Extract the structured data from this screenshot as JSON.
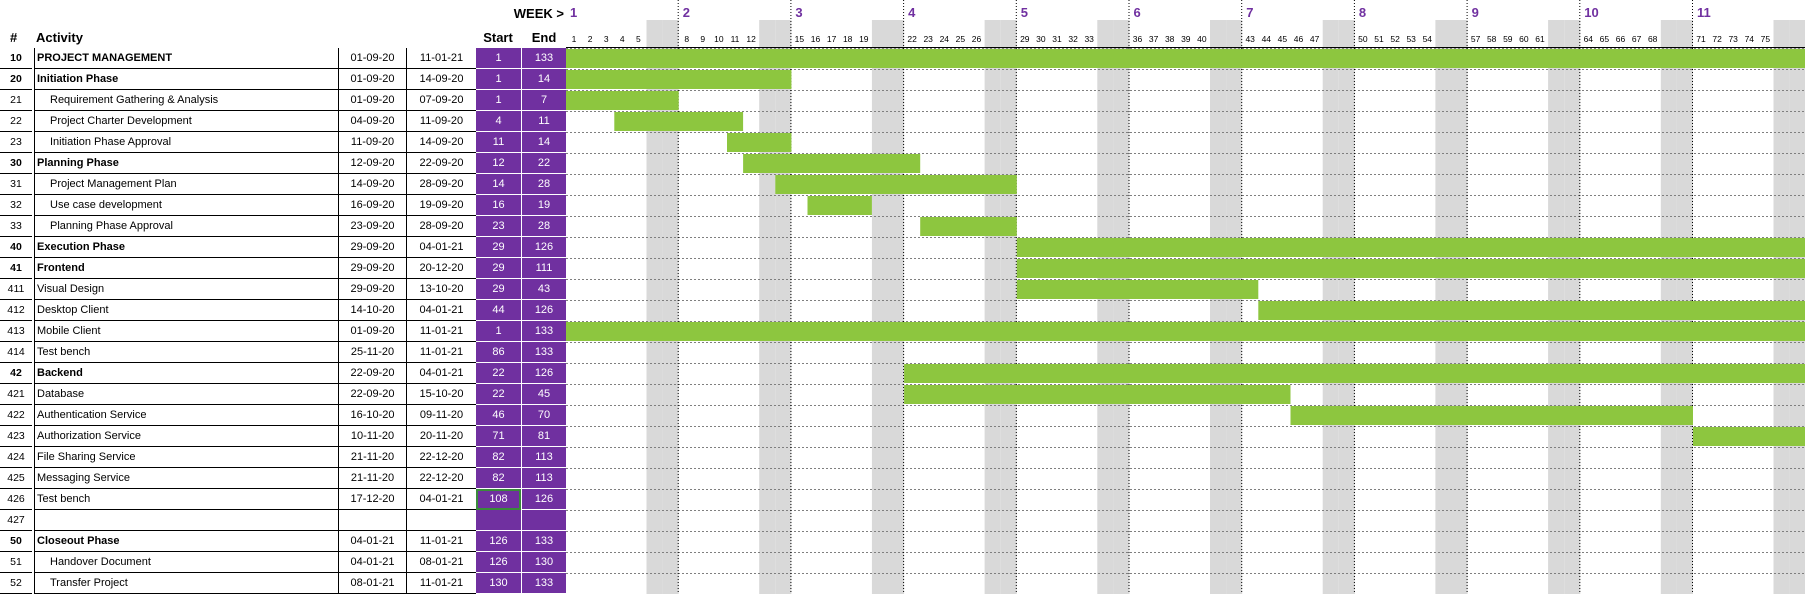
{
  "header": {
    "hash": "#",
    "activity": "Activity",
    "start": "Start",
    "end": "End",
    "week_label": "WEEK >"
  },
  "weeks": [
    "1",
    "2",
    "3",
    "4",
    "5",
    "6",
    "7",
    "8",
    "9",
    "10",
    "11"
  ],
  "visible_days": 77,
  "colors": {
    "bar": "#8dc63f",
    "accent": "#7030a0",
    "weekend": "#d9d9d9"
  },
  "rows": [
    {
      "id": "10",
      "activity": "PROJECT MANAGEMENT",
      "start_date": "01-09-20",
      "end_date": "11-01-21",
      "start": "1",
      "end": "133",
      "bold": true,
      "indent": false
    },
    {
      "id": "20",
      "activity": "Initiation Phase",
      "start_date": "01-09-20",
      "end_date": "14-09-20",
      "start": "1",
      "end": "14",
      "bold": true,
      "indent": false
    },
    {
      "id": "21",
      "activity": "Requirement Gathering & Analysis",
      "start_date": "01-09-20",
      "end_date": "07-09-20",
      "start": "1",
      "end": "7",
      "bold": false,
      "indent": true
    },
    {
      "id": "22",
      "activity": "Project Charter Development",
      "start_date": "04-09-20",
      "end_date": "11-09-20",
      "start": "4",
      "end": "11",
      "bold": false,
      "indent": true
    },
    {
      "id": "23",
      "activity": "Initiation Phase Approval",
      "start_date": "11-09-20",
      "end_date": "14-09-20",
      "start": "11",
      "end": "14",
      "bold": false,
      "indent": true
    },
    {
      "id": "30",
      "activity": "Planning Phase",
      "start_date": "12-09-20",
      "end_date": "22-09-20",
      "start": "12",
      "end": "22",
      "bold": true,
      "indent": false
    },
    {
      "id": "31",
      "activity": "Project Management Plan",
      "start_date": "14-09-20",
      "end_date": "28-09-20",
      "start": "14",
      "end": "28",
      "bold": false,
      "indent": true
    },
    {
      "id": "32",
      "activity": "Use case development",
      "start_date": "16-09-20",
      "end_date": "19-09-20",
      "start": "16",
      "end": "19",
      "bold": false,
      "indent": true
    },
    {
      "id": "33",
      "activity": "Planning Phase Approval",
      "start_date": "23-09-20",
      "end_date": "28-09-20",
      "start": "23",
      "end": "28",
      "bold": false,
      "indent": true
    },
    {
      "id": "40",
      "activity": "Execution Phase",
      "start_date": "29-09-20",
      "end_date": "04-01-21",
      "start": "29",
      "end": "126",
      "bold": true,
      "indent": false
    },
    {
      "id": "41",
      "activity": "Frontend",
      "start_date": "29-09-20",
      "end_date": "20-12-20",
      "start": "29",
      "end": "111",
      "bold": true,
      "indent": false
    },
    {
      "id": "411",
      "activity": "Visual Design",
      "start_date": "29-09-20",
      "end_date": "13-10-20",
      "start": "29",
      "end": "43",
      "bold": false,
      "indent": false
    },
    {
      "id": "412",
      "activity": "Desktop Client",
      "start_date": "14-10-20",
      "end_date": "04-01-21",
      "start": "44",
      "end": "126",
      "bold": false,
      "indent": false
    },
    {
      "id": "413",
      "activity": "Mobile Client",
      "start_date": "01-09-20",
      "end_date": "11-01-21",
      "start": "1",
      "end": "133",
      "bold": false,
      "indent": false
    },
    {
      "id": "414",
      "activity": "Test bench",
      "start_date": "25-11-20",
      "end_date": "11-01-21",
      "start": "86",
      "end": "133",
      "bold": false,
      "indent": false
    },
    {
      "id": "42",
      "activity": "Backend",
      "start_date": "22-09-20",
      "end_date": "04-01-21",
      "start": "22",
      "end": "126",
      "bold": true,
      "indent": false
    },
    {
      "id": "421",
      "activity": "Database",
      "start_date": "22-09-20",
      "end_date": "15-10-20",
      "start": "22",
      "end": "45",
      "bold": false,
      "indent": false
    },
    {
      "id": "422",
      "activity": "Authentication Service",
      "start_date": "16-10-20",
      "end_date": "09-11-20",
      "start": "46",
      "end": "70",
      "bold": false,
      "indent": false
    },
    {
      "id": "423",
      "activity": "Authorization Service",
      "start_date": "10-11-20",
      "end_date": "20-11-20",
      "start": "71",
      "end": "81",
      "bold": false,
      "indent": false
    },
    {
      "id": "424",
      "activity": "File Sharing Service",
      "start_date": "21-11-20",
      "end_date": "22-12-20",
      "start": "82",
      "end": "113",
      "bold": false,
      "indent": false
    },
    {
      "id": "425",
      "activity": "Messaging Service",
      "start_date": "21-11-20",
      "end_date": "22-12-20",
      "start": "82",
      "end": "113",
      "bold": false,
      "indent": false
    },
    {
      "id": "426",
      "activity": "Test bench",
      "start_date": "17-12-20",
      "end_date": "04-01-21",
      "start": "108",
      "end": "126",
      "bold": false,
      "indent": false,
      "selected": true
    },
    {
      "id": "427",
      "activity": "",
      "start_date": "",
      "end_date": "",
      "start": "",
      "end": "",
      "bold": false,
      "indent": false
    },
    {
      "id": "50",
      "activity": "Closeout Phase",
      "start_date": "04-01-21",
      "end_date": "11-01-21",
      "start": "126",
      "end": "133",
      "bold": true,
      "indent": false
    },
    {
      "id": "51",
      "activity": "Handover Document",
      "start_date": "04-01-21",
      "end_date": "08-01-21",
      "start": "126",
      "end": "130",
      "bold": false,
      "indent": true
    },
    {
      "id": "52",
      "activity": "Transfer Project",
      "start_date": "08-01-21",
      "end_date": "11-01-21",
      "start": "130",
      "end": "133",
      "bold": false,
      "indent": true
    }
  ],
  "chart_data": {
    "type": "bar",
    "orientation": "horizontal-gantt",
    "xlabel": "WEEK >",
    "x_ticks": [
      "1",
      "2",
      "3",
      "4",
      "5",
      "6",
      "7",
      "8",
      "9",
      "10",
      "11"
    ],
    "xlim": [
      1,
      77
    ],
    "categories": [
      "PROJECT MANAGEMENT",
      "Initiation Phase",
      "Requirement Gathering & Analysis",
      "Project Charter Development",
      "Initiation Phase Approval",
      "Planning Phase",
      "Project Management Plan",
      "Use case development",
      "Planning Phase Approval",
      "Execution Phase",
      "Frontend",
      "Visual Design",
      "Desktop Client",
      "Mobile Client",
      "Test bench",
      "Backend",
      "Database",
      "Authentication Service",
      "Authorization Service",
      "File Sharing Service",
      "Messaging Service",
      "Test bench",
      "",
      "Closeout Phase",
      "Handover Document",
      "Transfer Project"
    ],
    "start": [
      1,
      1,
      1,
      4,
      11,
      12,
      14,
      16,
      23,
      29,
      29,
      29,
      44,
      1,
      86,
      22,
      22,
      46,
      71,
      82,
      82,
      108,
      null,
      126,
      126,
      130
    ],
    "end": [
      133,
      14,
      7,
      11,
      14,
      22,
      28,
      19,
      28,
      126,
      111,
      43,
      126,
      133,
      133,
      126,
      45,
      70,
      81,
      113,
      113,
      126,
      null,
      133,
      130,
      133
    ]
  }
}
